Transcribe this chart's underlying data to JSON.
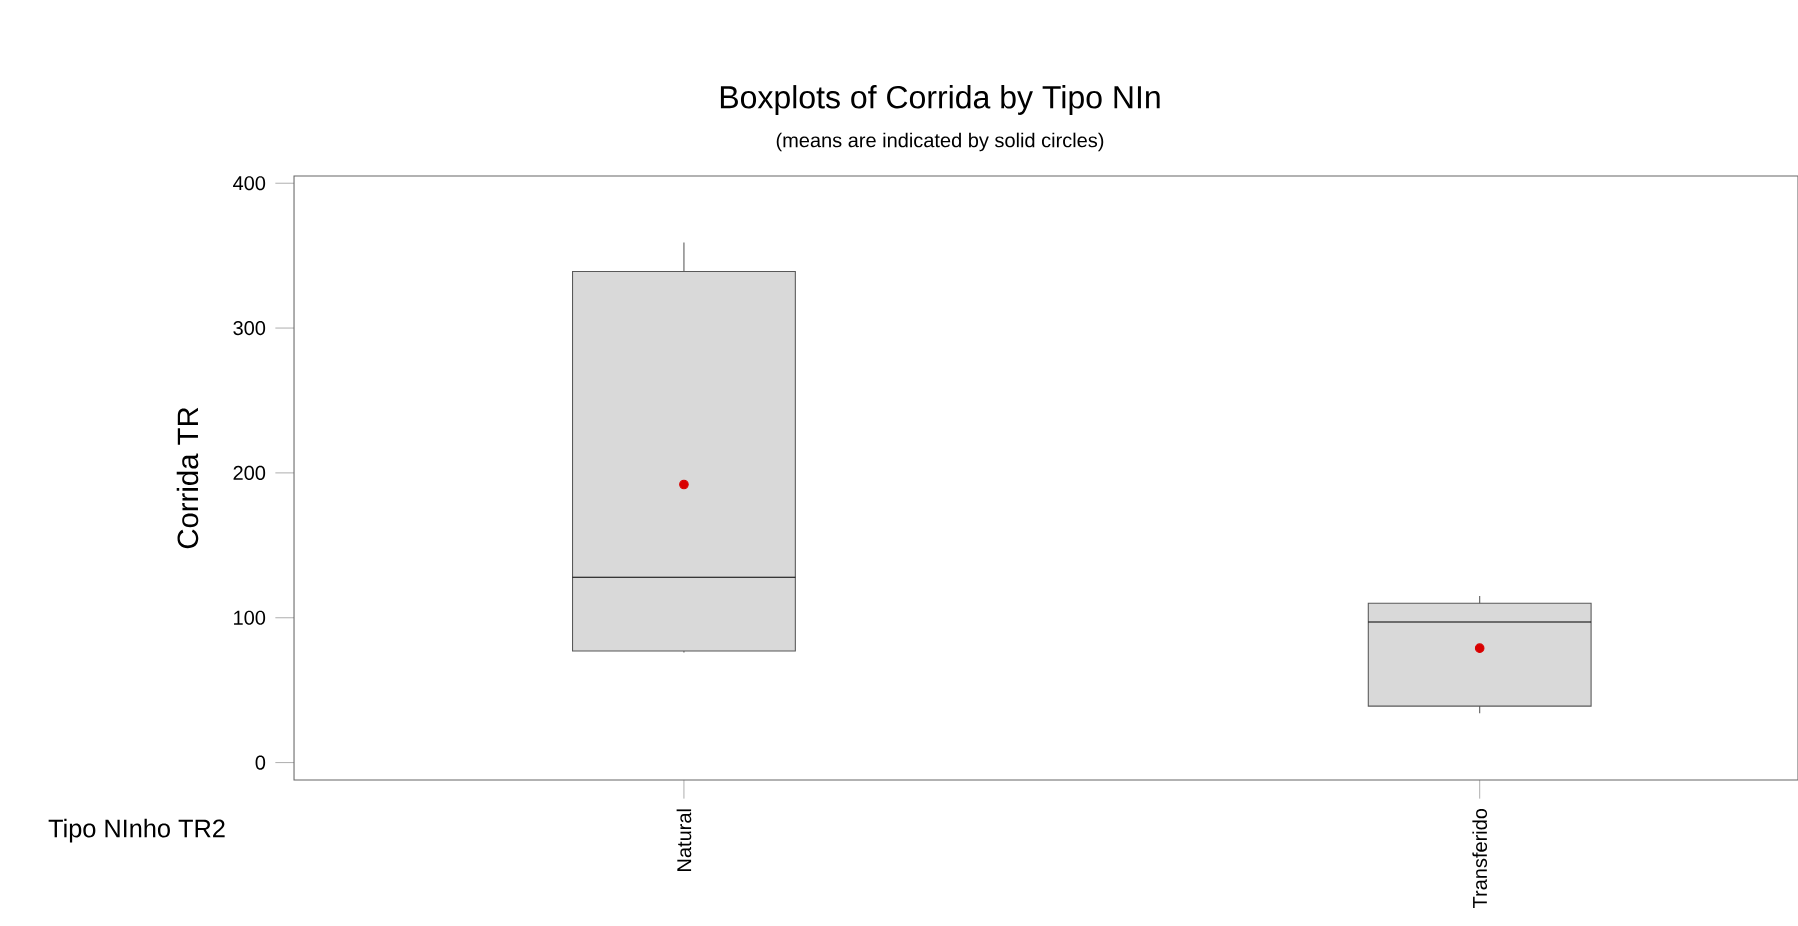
{
  "chart_data": {
    "type": "box",
    "title": "Boxplots of Corrida by Tipo NIn",
    "subtitle": "(means are indicated by solid circles)",
    "xlabel": "Tipo NInho TR2",
    "ylabel": "Corrida TR",
    "categories": [
      "Natural",
      "Transferido"
    ],
    "color": "#d9d9d9",
    "ylim": [
      -12,
      405
    ],
    "yticks": [
      0,
      100,
      200,
      300,
      400
    ],
    "grid": false,
    "boxes": [
      {
        "low": 76,
        "q1": 77,
        "median": 128,
        "q3": 339,
        "high": 359,
        "mean": 192
      },
      {
        "low": 34,
        "q1": 39,
        "median": 97,
        "q3": 110,
        "high": 115,
        "mean": 79
      }
    ]
  }
}
